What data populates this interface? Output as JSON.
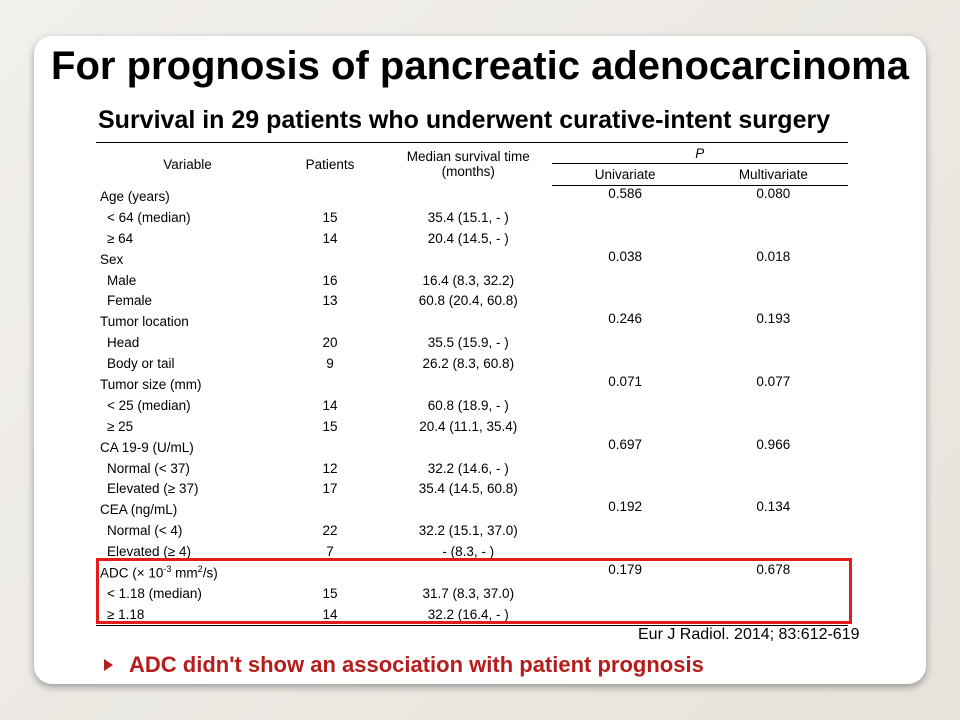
{
  "slide": {
    "title": "For prognosis of pancreatic adenocarcinoma",
    "subtitle": "Survival in 29 patients who underwent curative-intent surgery"
  },
  "table": {
    "headers": {
      "variable": "Variable",
      "patients": "Patients",
      "median_line1": "Median survival time",
      "median_line2": "(months)",
      "p_group": "P",
      "univariate": "Univariate",
      "multivariate": "Multivariate"
    },
    "rows": [
      {
        "variable": "Age (years)",
        "patients": "",
        "median": "",
        "univariate": "0.586",
        "multivariate": "0.080"
      },
      {
        "variable": "< 64 (median)",
        "patients": "15",
        "median": "35.4 (15.1, - )",
        "univariate": "",
        "multivariate": ""
      },
      {
        "variable": "≥ 64",
        "patients": "14",
        "median": "20.4 (14.5, - )",
        "univariate": "",
        "multivariate": ""
      },
      {
        "variable": "Sex",
        "patients": "",
        "median": "",
        "univariate": "0.038",
        "multivariate": "0.018"
      },
      {
        "variable": "Male",
        "patients": "16",
        "median": "16.4 (8.3, 32.2)",
        "univariate": "",
        "multivariate": ""
      },
      {
        "variable": "Female",
        "patients": "13",
        "median": "60.8 (20.4, 60.8)",
        "univariate": "",
        "multivariate": ""
      },
      {
        "variable": "Tumor location",
        "patients": "",
        "median": "",
        "univariate": "0.246",
        "multivariate": "0.193"
      },
      {
        "variable": "Head",
        "patients": "20",
        "median": "35.5 (15.9, - )",
        "univariate": "",
        "multivariate": ""
      },
      {
        "variable": "Body or tail",
        "patients": "9",
        "median": "26.2 (8.3, 60.8)",
        "univariate": "",
        "multivariate": ""
      },
      {
        "variable": "Tumor size (mm)",
        "patients": "",
        "median": "",
        "univariate": "0.071",
        "multivariate": "0.077"
      },
      {
        "variable": "< 25 (median)",
        "patients": "14",
        "median": "60.8 (18.9, - )",
        "univariate": "",
        "multivariate": ""
      },
      {
        "variable": "≥ 25",
        "patients": "15",
        "median": "20.4 (11.1, 35.4)",
        "univariate": "",
        "multivariate": ""
      },
      {
        "variable": "CA 19-9 (U/mL)",
        "patients": "",
        "median": "",
        "univariate": "0.697",
        "multivariate": "0.966"
      },
      {
        "variable": "Normal (< 37)",
        "patients": "12",
        "median": "32.2 (14.6, - )",
        "univariate": "",
        "multivariate": ""
      },
      {
        "variable": "Elevated (≥ 37)",
        "patients": "17",
        "median": "35.4 (14.5, 60.8)",
        "univariate": "",
        "multivariate": ""
      },
      {
        "variable": "CEA (ng/mL)",
        "patients": "",
        "median": "",
        "univariate": "0.192",
        "multivariate": "0.134"
      },
      {
        "variable": "Normal (< 4)",
        "patients": "22",
        "median": "32.2 (15.1, 37.0)",
        "univariate": "",
        "multivariate": ""
      },
      {
        "variable": "Elevated (≥ 4)",
        "patients": "7",
        "median": "- (8.3, - )",
        "univariate": "",
        "multivariate": ""
      },
      {
        "variable": "< 1.18 (median)",
        "patients": "15",
        "median": "31.7 (8.3, 37.0)",
        "univariate": "",
        "multivariate": ""
      },
      {
        "variable": "≥ 1.18",
        "patients": "14",
        "median": "32.2 (16.4, - )",
        "univariate": "",
        "multivariate": ""
      }
    ],
    "adc_row": {
      "prefix": "ADC (× 10",
      "exp1": "-3",
      "mid": " mm",
      "exp2": "2",
      "suffix": "/s)",
      "univariate": "0.179",
      "multivariate": "0.678"
    }
  },
  "citation": "Eur J Radiol. 2014; 83:612-619",
  "conclusion": "ADC didn't show an association with patient prognosis",
  "colors": {
    "highlight_border": "#e41b1b",
    "conclusion_text": "#b71c1c"
  },
  "icons": {
    "bullet": "arrow-bullet-icon"
  }
}
